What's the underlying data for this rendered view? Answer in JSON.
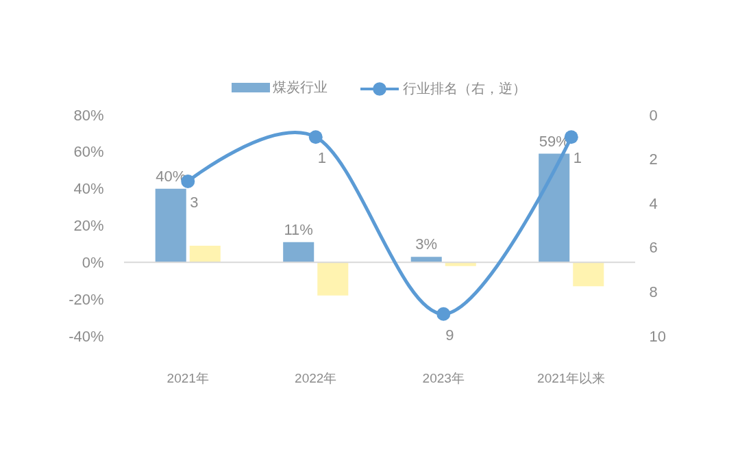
{
  "chart_data": {
    "type": "bar",
    "categories": [
      "2021年",
      "2022年",
      "2023年",
      "2021年以来"
    ],
    "series": [
      {
        "name": "煤炭行业",
        "color": "#7eadd4",
        "values": [
          40,
          11,
          3,
          59
        ],
        "value_labels": [
          "40%",
          "11%",
          "3%",
          "59%"
        ]
      },
      {
        "color": "#fff3b0",
        "values": [
          9,
          -18,
          -2,
          -13
        ]
      },
      {
        "name": "行业排名（右，逆）",
        "type": "line",
        "axis": "y2",
        "color": "#5b9bd5",
        "values": [
          3,
          1,
          9,
          1
        ],
        "value_labels": [
          "3",
          "1",
          "9",
          "1"
        ]
      }
    ],
    "ylim": [
      -40,
      80
    ],
    "yticks": [
      {
        "value": -40,
        "label": "-40%"
      },
      {
        "value": -20,
        "label": "-20%"
      },
      {
        "value": 0,
        "label": "0%"
      },
      {
        "value": 20,
        "label": "20%"
      },
      {
        "value": 40,
        "label": "40%"
      },
      {
        "value": 60,
        "label": "60%"
      },
      {
        "value": 80,
        "label": "80%"
      }
    ],
    "y2lim": [
      10,
      0
    ],
    "y2ticks": [
      0,
      2,
      4,
      6,
      8,
      10
    ],
    "ref_lines": [
      {
        "axis": "y",
        "value": 0,
        "color": "#d9d9d9"
      }
    ],
    "grid": false,
    "legend": "top",
    "marker": "circle",
    "line_style": "solid"
  }
}
